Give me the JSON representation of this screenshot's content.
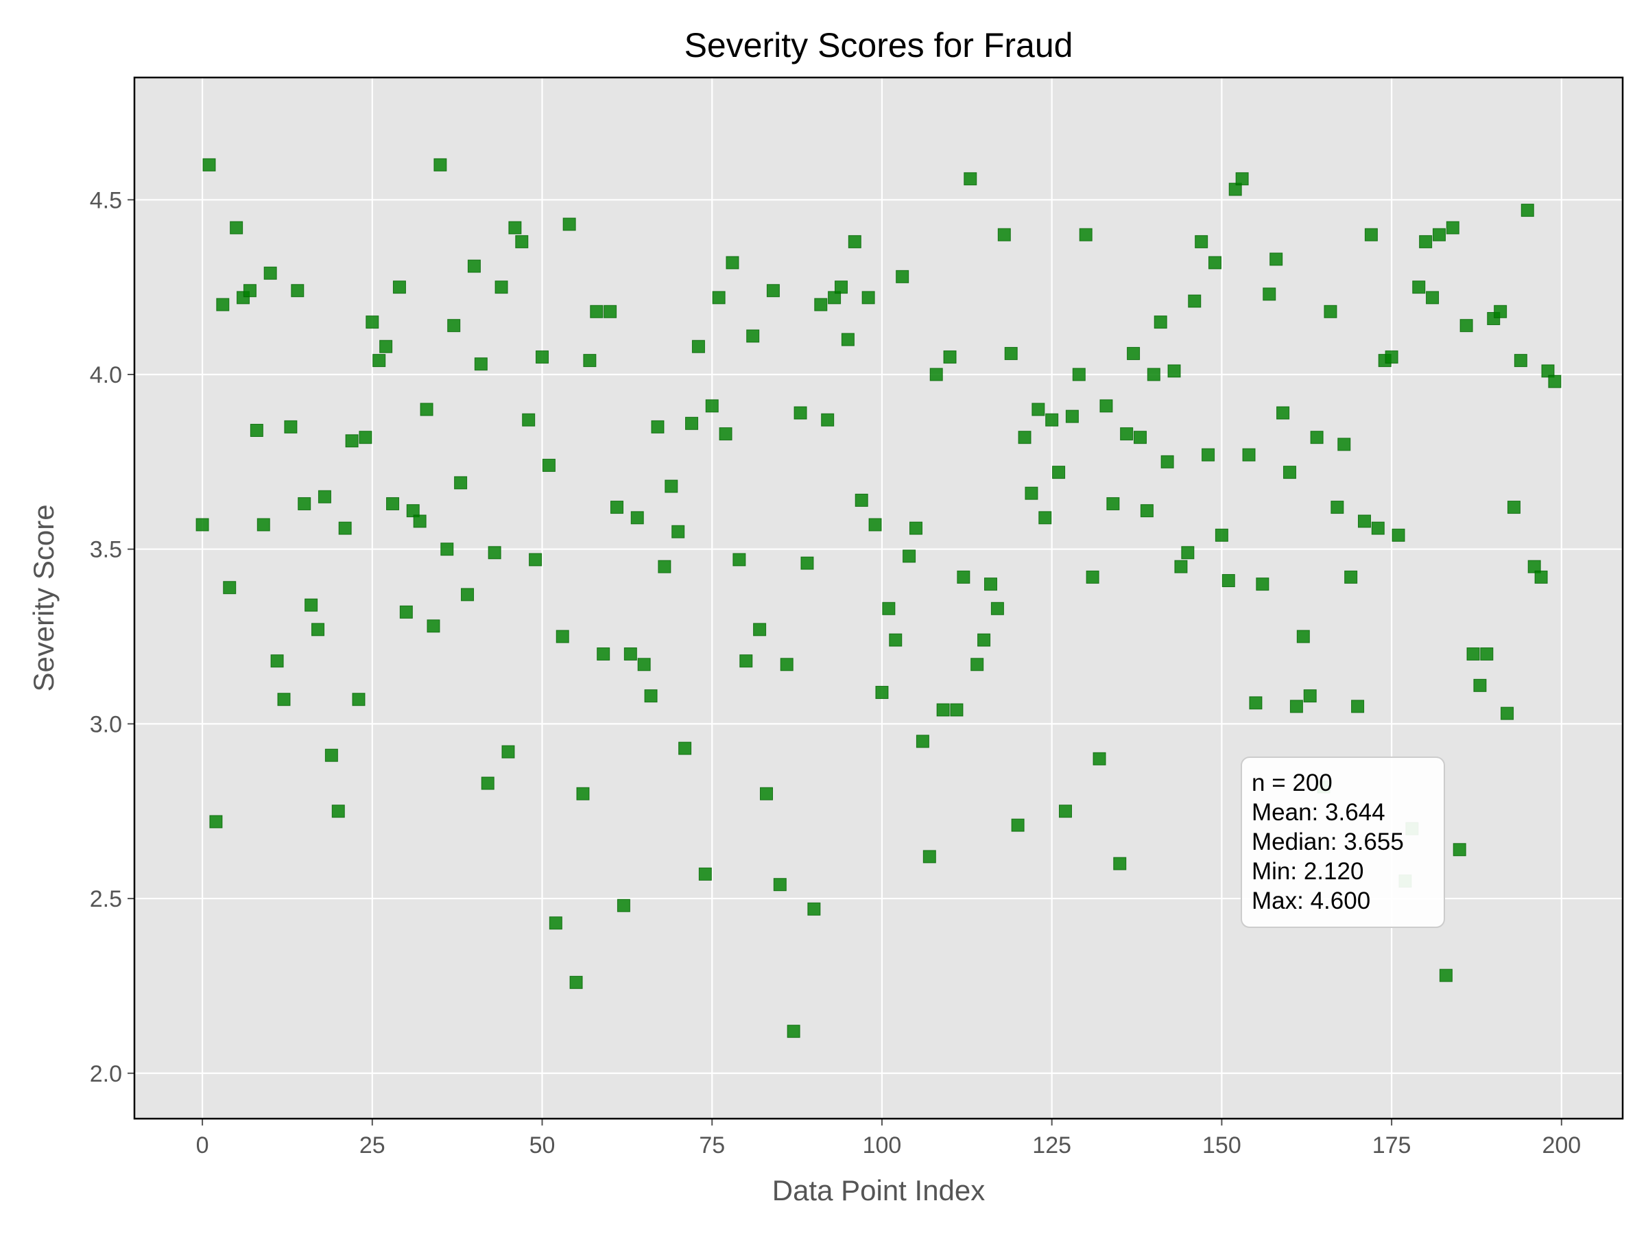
{
  "chart_data": {
    "type": "scatter",
    "title": "Severity Scores for Fraud",
    "xlabel": "Data Point Index",
    "ylabel": "Severity Score",
    "xlim": [
      -10,
      209
    ],
    "ylim": [
      1.87,
      4.85
    ],
    "xticks": [
      0,
      25,
      50,
      75,
      100,
      125,
      150,
      175,
      200
    ],
    "xtick_labels": [
      "0",
      "25",
      "50",
      "75",
      "100",
      "125",
      "150",
      "175",
      "200"
    ],
    "yticks": [
      2.0,
      2.5,
      3.0,
      3.5,
      4.0,
      4.5
    ],
    "ytick_labels": [
      "2.0",
      "2.5",
      "3.0",
      "3.5",
      "4.0",
      "4.5"
    ],
    "grid": true,
    "background_color": "#e5e5e5",
    "marker": "square",
    "marker_color": "#008000",
    "series": [
      {
        "x": [
          0,
          1,
          2,
          3,
          4,
          5,
          6,
          7,
          8,
          9,
          10,
          11,
          12,
          13,
          14,
          15,
          16,
          17,
          18,
          19,
          20,
          21,
          22,
          23,
          24,
          25,
          26,
          27,
          28,
          29,
          30,
          31,
          32,
          33,
          34,
          35,
          36,
          37,
          38,
          39,
          40,
          41,
          42,
          43,
          44,
          45,
          46,
          47,
          48,
          49,
          50,
          51,
          52,
          53,
          54,
          55,
          56,
          57,
          58,
          59,
          60,
          61,
          62,
          63,
          64,
          65,
          66,
          67,
          68,
          69,
          70,
          71,
          72,
          73,
          74,
          75,
          76,
          77,
          78,
          79,
          80,
          81,
          82,
          83,
          84,
          85,
          86,
          87,
          88,
          89,
          90,
          91,
          92,
          93,
          94,
          95,
          96,
          97,
          98,
          99,
          100,
          101,
          102,
          103,
          104,
          105,
          106,
          107,
          108,
          109,
          110,
          111,
          112,
          113,
          114,
          115,
          116,
          117,
          118,
          119,
          120,
          121,
          122,
          123,
          124,
          125,
          126,
          127,
          128,
          129,
          130,
          131,
          132,
          133,
          134,
          135,
          136,
          137,
          138,
          139,
          140,
          141,
          142,
          143,
          144,
          145,
          146,
          147,
          148,
          149,
          150,
          151,
          152,
          153,
          154,
          155,
          156,
          157,
          158,
          159,
          160,
          161,
          162,
          163,
          164,
          165,
          166,
          167,
          168,
          169,
          170,
          171,
          172,
          173,
          174,
          175,
          176,
          177,
          178,
          179,
          180,
          181,
          182,
          183,
          184,
          185,
          186,
          187,
          188,
          189,
          190,
          191,
          192,
          193,
          194,
          195,
          196,
          197,
          198,
          199
        ],
        "y": [
          3.57,
          4.6,
          2.72,
          4.2,
          3.39,
          4.42,
          4.22,
          4.24,
          3.84,
          3.57,
          4.29,
          3.18,
          3.07,
          3.85,
          4.24,
          3.63,
          3.34,
          3.27,
          3.65,
          2.91,
          2.75,
          3.56,
          3.81,
          3.07,
          3.82,
          4.15,
          4.04,
          4.08,
          3.63,
          4.25,
          3.32,
          3.61,
          3.58,
          3.9,
          3.28,
          4.6,
          3.5,
          4.14,
          3.69,
          3.37,
          4.31,
          4.03,
          2.83,
          3.49,
          4.25,
          2.92,
          4.42,
          4.38,
          3.87,
          3.47,
          4.05,
          3.74,
          2.43,
          3.25,
          4.43,
          2.26,
          2.8,
          4.04,
          4.18,
          3.2,
          4.18,
          3.62,
          2.48,
          3.2,
          3.59,
          3.17,
          3.08,
          3.85,
          3.45,
          3.68,
          3.55,
          2.93,
          3.86,
          4.08,
          2.57,
          3.91,
          4.22,
          3.83,
          4.32,
          3.47,
          3.18,
          4.11,
          3.27,
          2.8,
          4.24,
          2.54,
          3.17,
          2.12,
          3.89,
          3.46,
          2.47,
          4.2,
          3.87,
          4.22,
          4.25,
          4.1,
          4.38,
          3.64,
          4.22,
          3.57,
          3.09,
          3.33,
          3.24,
          4.28,
          3.48,
          3.56,
          2.95,
          2.62,
          4.0,
          3.04,
          4.05,
          3.04,
          3.42,
          4.56,
          3.17,
          3.24,
          3.4,
          3.33,
          4.4,
          4.06,
          2.71,
          3.82,
          3.66,
          3.9,
          3.59,
          3.87,
          3.72,
          2.75,
          3.88,
          4.0,
          4.4,
          3.42,
          2.9,
          3.91,
          3.63,
          2.6,
          3.83,
          4.06,
          3.82,
          3.61,
          4.0,
          4.15,
          3.75,
          4.01,
          3.45,
          3.49,
          4.21,
          4.38,
          3.77,
          4.32,
          3.54,
          3.41,
          4.53,
          4.56,
          3.77,
          3.06,
          3.4,
          4.23,
          4.33,
          3.89,
          3.72,
          3.05,
          3.25,
          3.08,
          3.82,
          2.82,
          4.18,
          3.62,
          3.8,
          3.42,
          3.05,
          3.58,
          4.4,
          3.56,
          4.04,
          4.05,
          3.54,
          2.55,
          2.7,
          4.25,
          4.38,
          4.22,
          4.4,
          2.28,
          4.42,
          2.64,
          4.14,
          3.2,
          3.11,
          3.2,
          4.16,
          4.18,
          3.03,
          3.62,
          4.04,
          4.47,
          3.45,
          3.42,
          4.01,
          3.98
        ]
      }
    ],
    "stats_box": {
      "lines": [
        "n = 200",
        "Mean: 3.644",
        "Median: 3.655",
        "Min: 2.120",
        "Max: 4.600"
      ],
      "placement": "lower-right"
    }
  }
}
